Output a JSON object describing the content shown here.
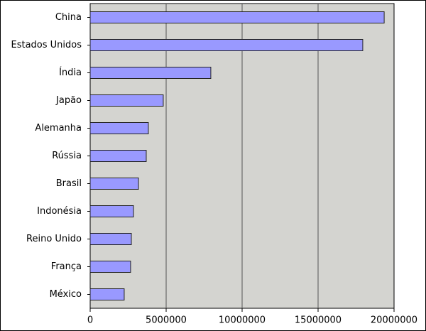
{
  "chart_data": {
    "type": "bar",
    "orientation": "horizontal",
    "categories": [
      "China",
      "Estados Unidos",
      "Índia",
      "Japão",
      "Alemanha",
      "Rússia",
      "Brasil",
      "Indonésia",
      "Reino Unido",
      "França",
      "México"
    ],
    "values": [
      19350000,
      17940000,
      7940000,
      4810000,
      3830000,
      3690000,
      3180000,
      2850000,
      2710000,
      2660000,
      2240000
    ],
    "color": "#9999ff",
    "xlim": [
      0,
      20000000
    ],
    "xticks": [
      0,
      5000000,
      10000000,
      15000000,
      20000000
    ],
    "grid": true
  }
}
